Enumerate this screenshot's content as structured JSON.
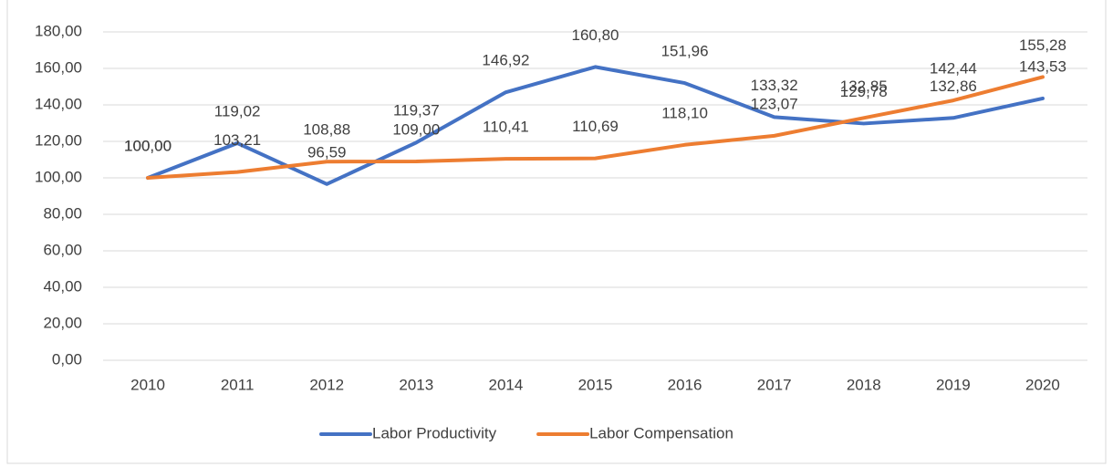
{
  "chart_data": {
    "type": "line",
    "categories": [
      "2010",
      "2011",
      "2012",
      "2013",
      "2014",
      "2015",
      "2016",
      "2017",
      "2018",
      "2019",
      "2020"
    ],
    "series": [
      {
        "name": "Labor Productivity",
        "color": "#4472c4",
        "values": [
          100.0,
          119.02,
          96.59,
          119.37,
          146.92,
          160.8,
          151.96,
          133.32,
          129.78,
          132.86,
          143.53
        ],
        "value_labels": [
          "100,00",
          "119,02",
          "96,59",
          "119,37",
          "146,92",
          "160,80",
          "151,96",
          "133,32",
          "129,78",
          "132,86",
          "143,53"
        ]
      },
      {
        "name": "Labor Compensation",
        "color": "#ed7d31",
        "values": [
          100.0,
          103.21,
          108.88,
          109.0,
          110.41,
          110.69,
          118.1,
          123.07,
          132.85,
          142.44,
          155.28
        ],
        "value_labels": [
          "100,00",
          "103,21",
          "108,88",
          "109,00",
          "110,41",
          "110,69",
          "118,10",
          "123,07",
          "132,85",
          "142,44",
          "155,28"
        ]
      }
    ],
    "ylim": [
      0,
      180
    ],
    "yticks": [
      {
        "value": 0,
        "label": "0,00"
      },
      {
        "value": 20,
        "label": "20,00"
      },
      {
        "value": 40,
        "label": "40,00"
      },
      {
        "value": 60,
        "label": "60,00"
      },
      {
        "value": 80,
        "label": "80,00"
      },
      {
        "value": 100,
        "label": "100,00"
      },
      {
        "value": 120,
        "label": "120,00"
      },
      {
        "value": 140,
        "label": "140,00"
      },
      {
        "value": 160,
        "label": "160,00"
      },
      {
        "value": 180,
        "label": "180,00"
      }
    ],
    "grid": true,
    "legend": "bottom"
  }
}
